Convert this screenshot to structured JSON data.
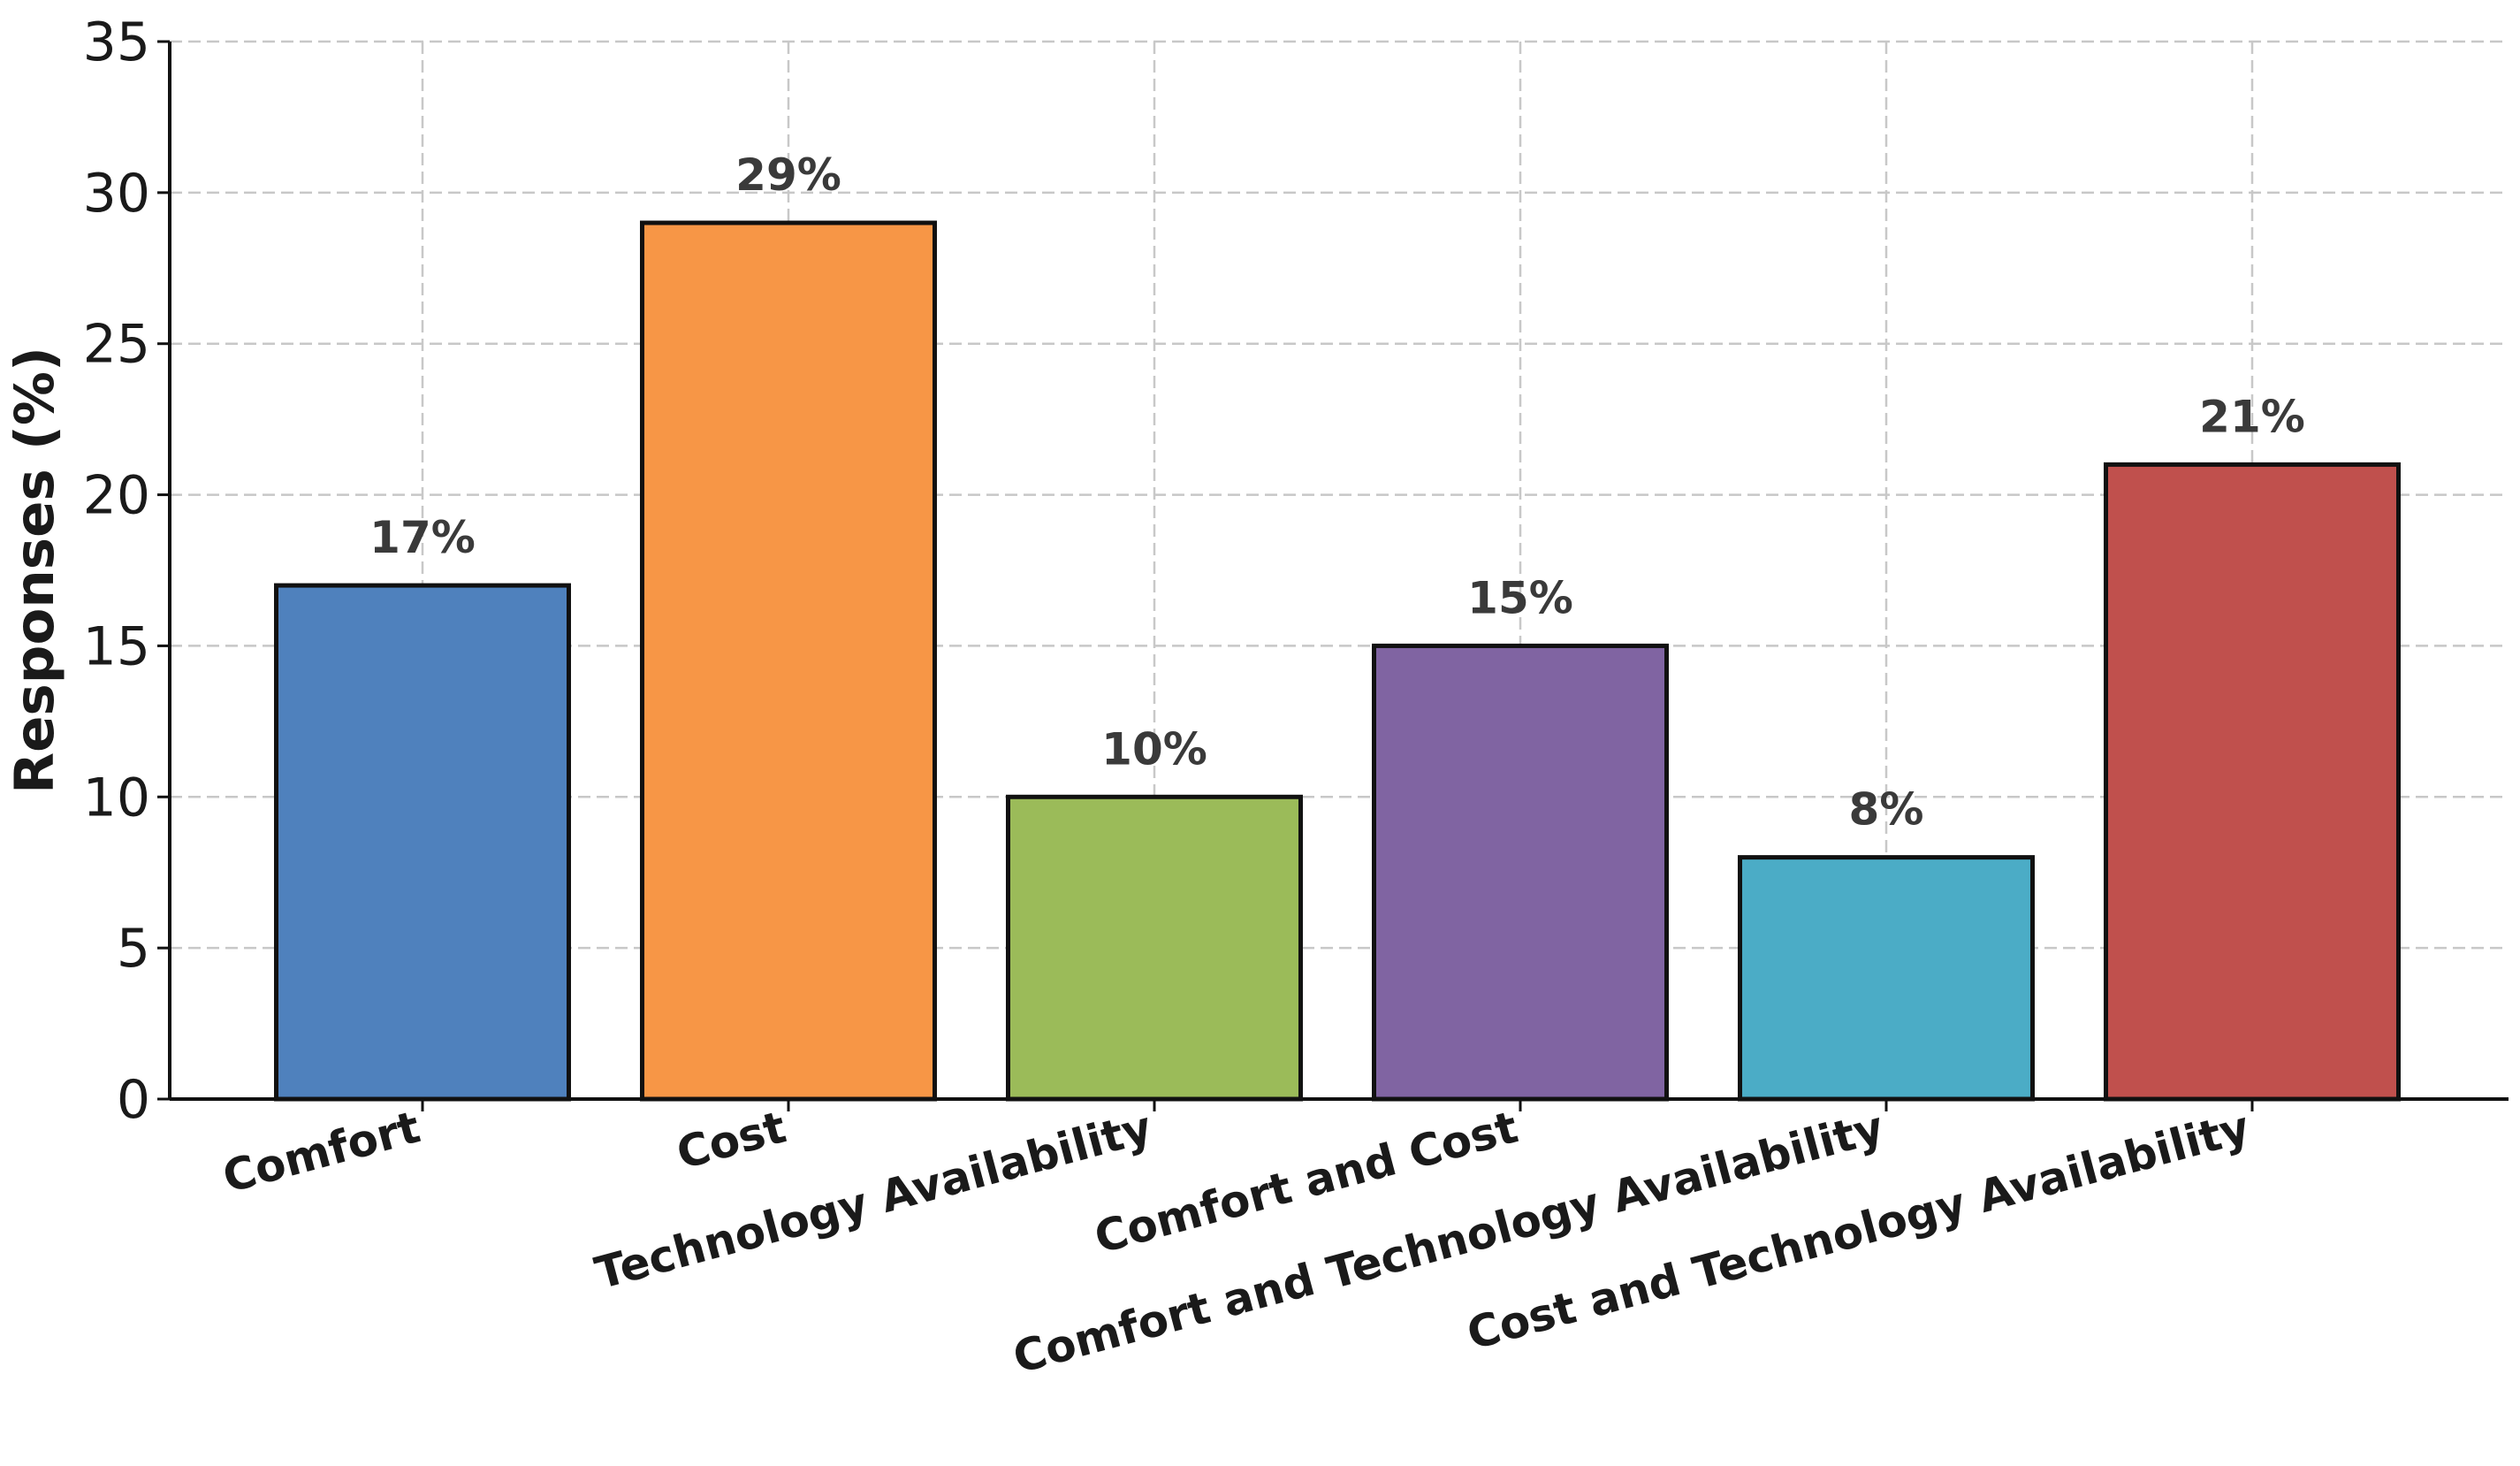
{
  "chart_data": {
    "type": "bar",
    "title": "",
    "xlabel": "",
    "ylabel": "Responses (%)",
    "ylim": [
      0,
      35
    ],
    "yticks": [
      0,
      5,
      10,
      15,
      20,
      25,
      30,
      35
    ],
    "grid": true,
    "categories": [
      "Comfort",
      "Cost",
      "Technology Availability",
      "Comfort and Cost",
      "Comfort and Technology Availability",
      "Cost and Technology Availability"
    ],
    "values": [
      17,
      29,
      10,
      15,
      8,
      21
    ],
    "data_labels": [
      "17%",
      "29%",
      "10%",
      "15%",
      "8%",
      "21%"
    ],
    "colors": [
      "#4f81bd",
      "#f79646",
      "#9bbb59",
      "#8064a2",
      "#4bacc6",
      "#c0504d"
    ]
  }
}
